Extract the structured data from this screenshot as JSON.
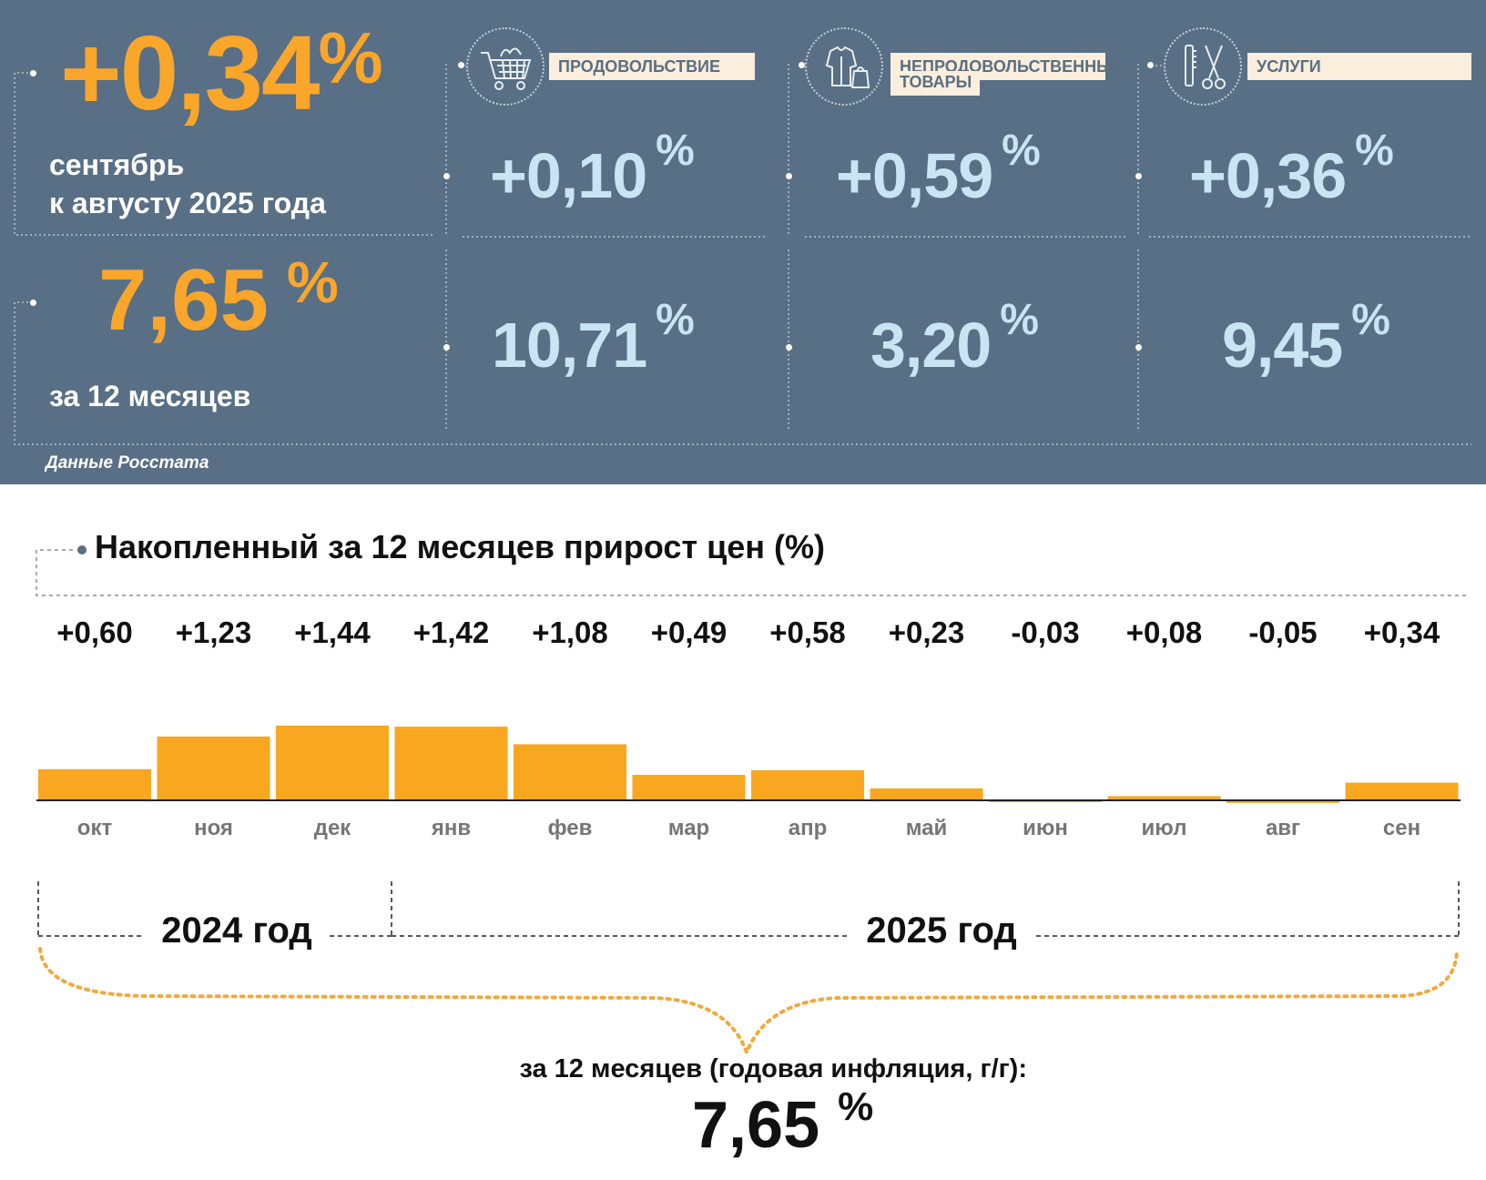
{
  "header": {
    "monthly_change": "+0,34",
    "monthly_pct": "%",
    "monthly_desc_line1": "сентябрь",
    "monthly_desc_line2": "к августу 2025 года",
    "annual_change": "7,65",
    "annual_pct": "%",
    "annual_desc": "за 12 месяцев",
    "source": "Данные Росстата"
  },
  "categories": [
    {
      "label": "ПРОДОВОЛЬСТВИЕ",
      "icon": "shopping-cart-icon",
      "monthly": "+0,10",
      "annual": "10,71",
      "pct": "%"
    },
    {
      "label_line1": "НЕПРОДОВОЛЬСТВЕННЫЕ",
      "label_line2": "ТОВАРЫ",
      "icon": "clothes-icon",
      "monthly": "+0,59",
      "annual": "3,20",
      "pct": "%"
    },
    {
      "label": "УСЛУГИ",
      "icon": "scissors-comb-icon",
      "monthly": "+0,36",
      "annual": "9,45",
      "pct": "%"
    }
  ],
  "chart_data": {
    "type": "bar",
    "title": "Накопленный за 12 месяцев прирост цен (%)",
    "categories": [
      "окт",
      "ноя",
      "дек",
      "янв",
      "фев",
      "мар",
      "апр",
      "май",
      "июн",
      "июл",
      "авг",
      "сен"
    ],
    "values": [
      0.6,
      1.23,
      1.44,
      1.42,
      1.08,
      0.49,
      0.58,
      0.23,
      -0.03,
      0.08,
      -0.05,
      0.34
    ],
    "value_labels": [
      "+0,60",
      "+1,23",
      "+1,44",
      "+1,42",
      "+1,08",
      "+0,49",
      "+0,58",
      "+0,23",
      "-0,03",
      "+0,08",
      "-0,05",
      "+0,34"
    ],
    "year_labels": [
      "2024 год",
      "2025 год"
    ],
    "total_caption": "за 12 месяцев (годовая инфляция, г/г):",
    "total_value": "7,65",
    "total_pct": "%",
    "bar_color": "#f9a620"
  }
}
